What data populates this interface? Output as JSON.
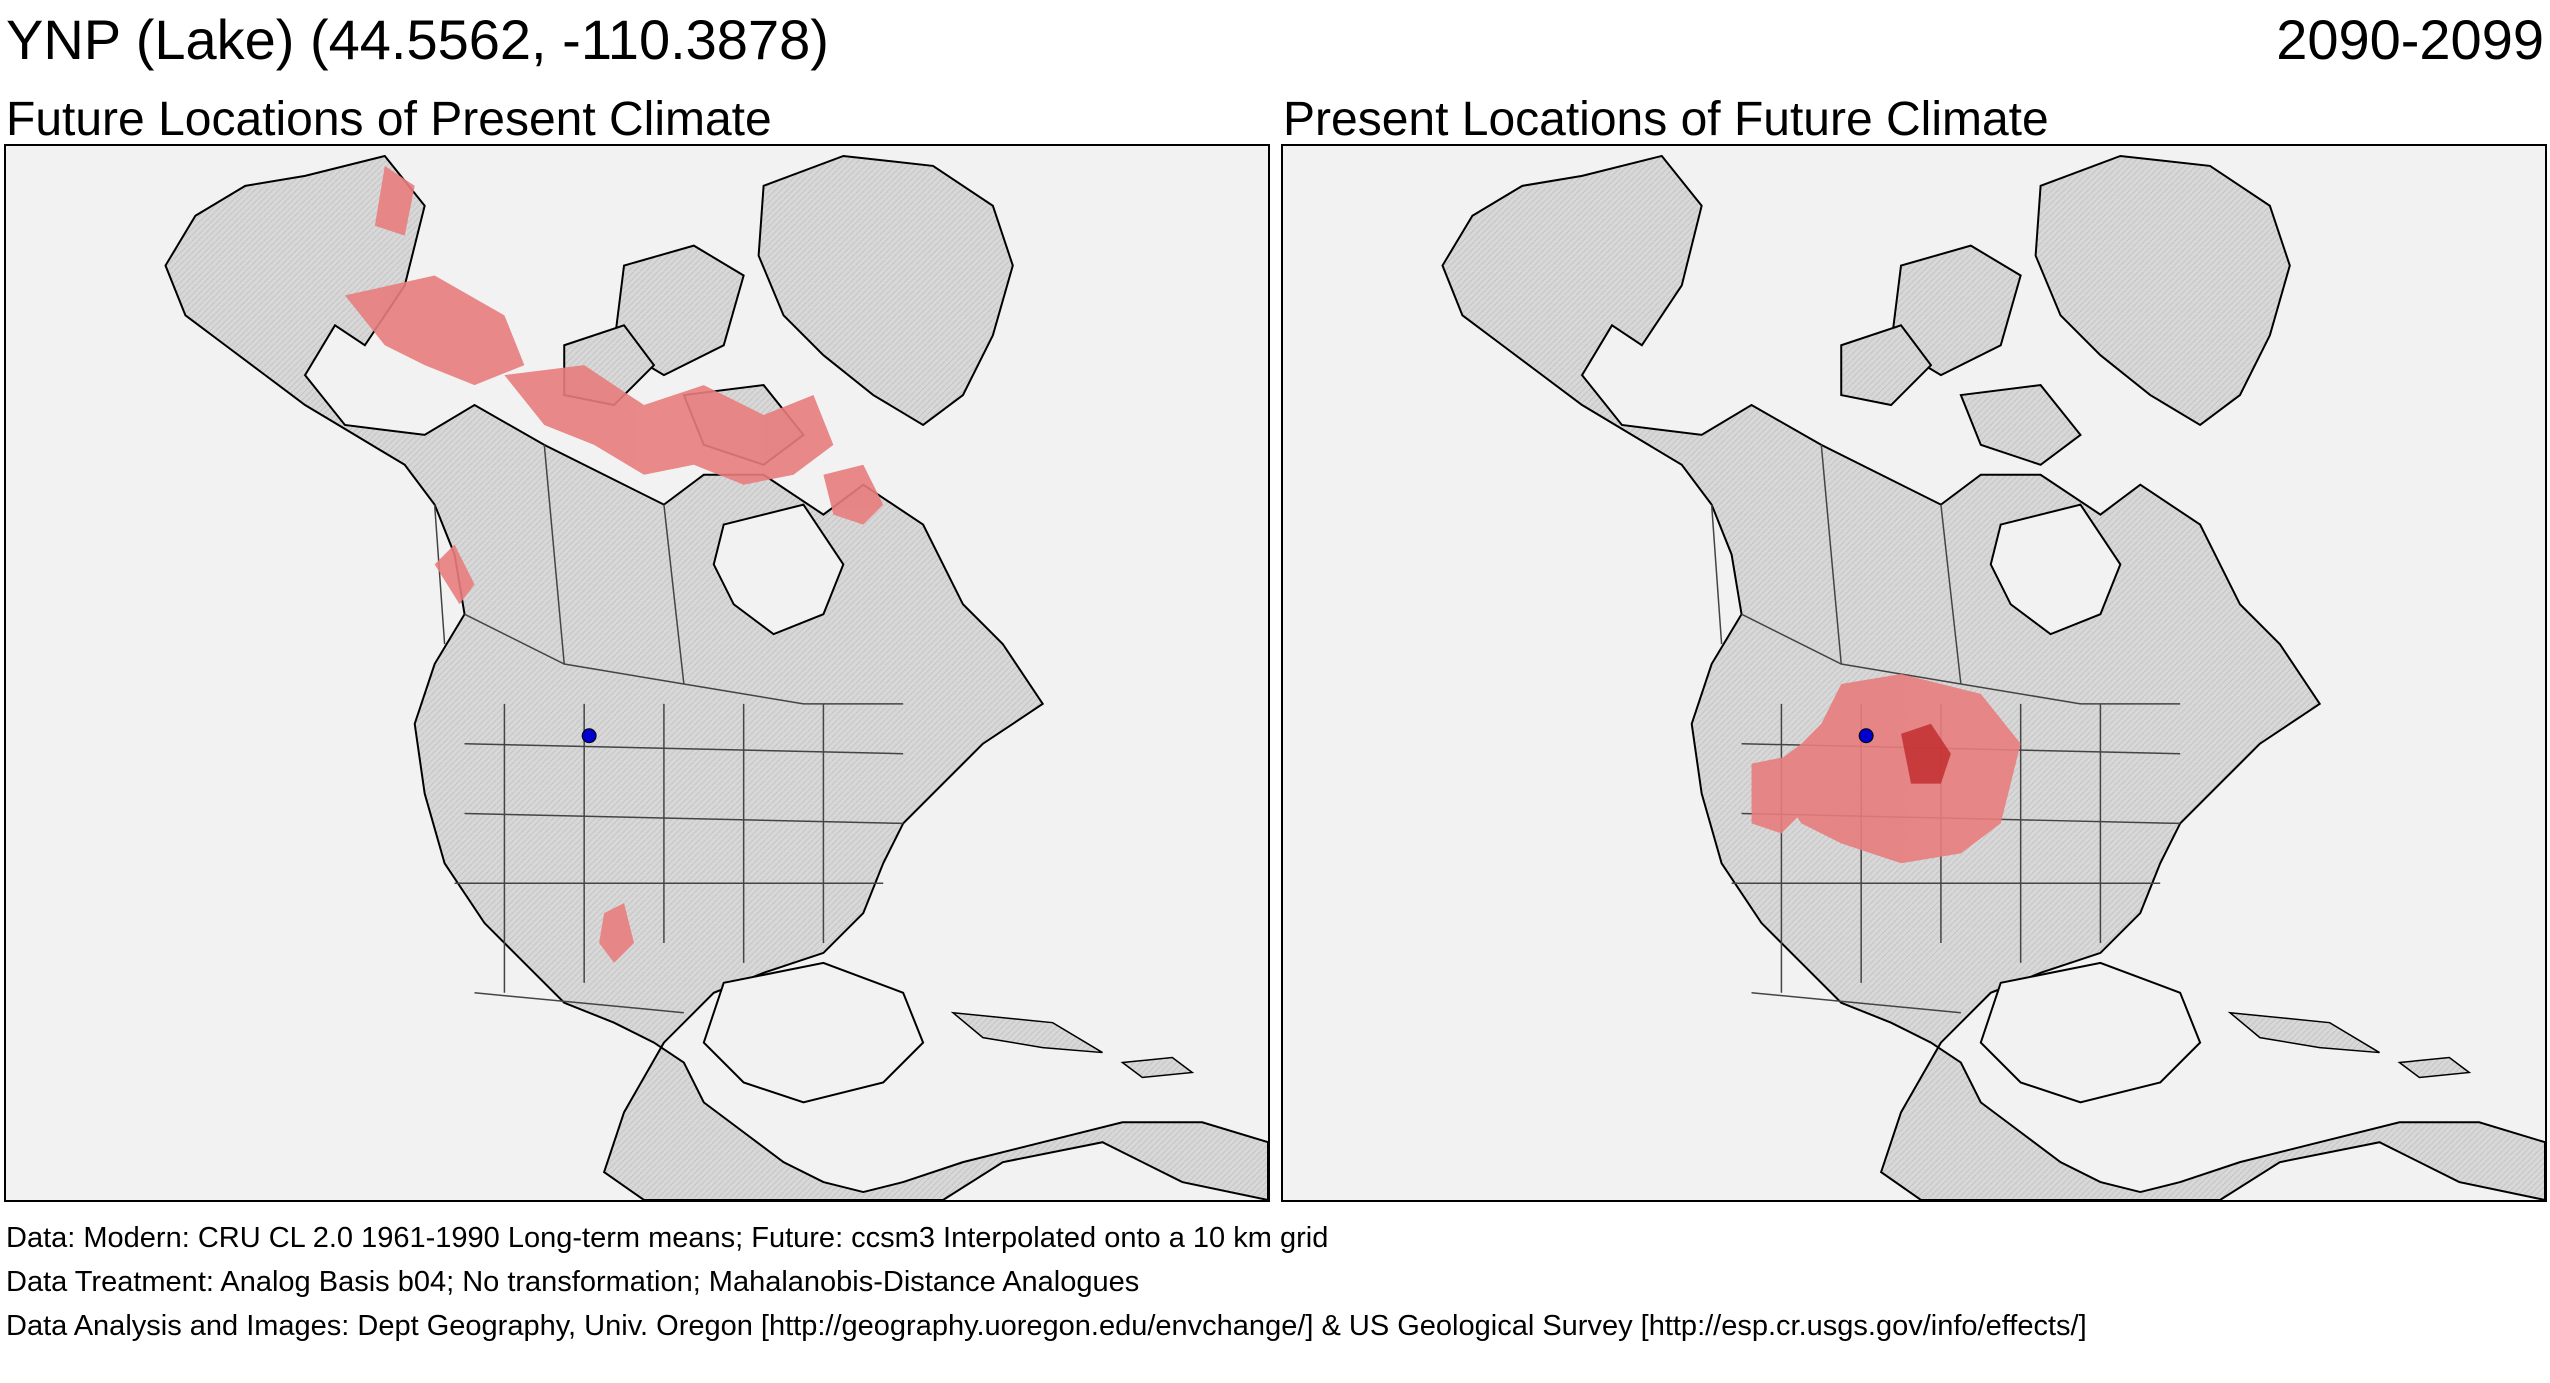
{
  "header": {
    "site_label": "YNP (Lake)  (44.5562, -110.3878)",
    "period": "2090-2099"
  },
  "panels": [
    {
      "title": "Future Locations of Present Climate",
      "site_marker_color": "#0000cc",
      "analog_color": "#e87d7d",
      "strong_analog_color": "#c0282a"
    },
    {
      "title": "Present Locations of Future Climate",
      "site_marker_color": "#0000cc",
      "analog_color": "#e87d7d",
      "strong_analog_color": "#c0282a"
    }
  ],
  "footer": {
    "data": "Data:  Modern: CRU CL 2.0 1961-1990 Long-term means; Future: ccsm3 Interpolated onto a 10 km grid",
    "treatment": "Data Treatment:  Analog Basis b04; No transformation; Mahalanobis-Distance Analogues",
    "analysis": "Data Analysis and Images:  Dept Geography, Univ. Oregon [http://geography.uoregon.edu/envchange/] & US Geological Survey [http://esp.cr.usgs.gov/info/effects/]"
  },
  "colors": {
    "land": "#d6d6d6",
    "water": "#f2f2f2",
    "border": "#444444",
    "coast": "#000000"
  }
}
